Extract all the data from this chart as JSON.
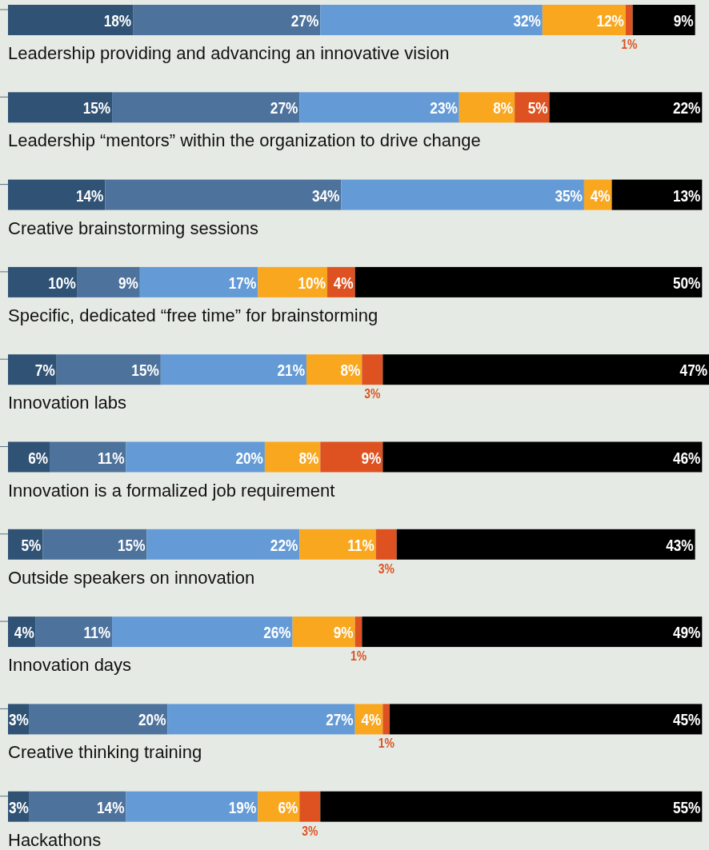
{
  "chart_data": {
    "type": "bar",
    "orientation": "horizontal",
    "stacked": true,
    "xlim": [
      0,
      101
    ],
    "tick_labels": "y",
    "categories": [
      "Leadership providing and advancing an innovative vision",
      "Leadership “mentors” within the organization to drive change",
      "Creative brainstorming sessions",
      "Specific, dedicated “free time” for brainstorming",
      "Innovation labs",
      "Innovation is a formalized job requirement",
      "Outside speakers on innovation",
      "Innovation days",
      "Creative thinking training",
      "Hackathons"
    ],
    "series": [
      {
        "color": "#2f5275",
        "values": [
          18,
          15,
          14,
          10,
          7,
          6,
          5,
          4,
          3,
          3
        ],
        "value_labels": [
          "18%",
          "15%",
          "14%",
          "10%",
          "7%",
          "6%",
          "5%",
          "4%",
          "3%",
          "3%"
        ]
      },
      {
        "color": "#4d729c",
        "values": [
          27,
          27,
          34,
          9,
          15,
          11,
          15,
          11,
          20,
          14
        ],
        "value_labels": [
          "27%",
          "27%",
          "34%",
          "9%",
          "15%",
          "11%",
          "15%",
          "11%",
          "20%",
          "14%"
        ]
      },
      {
        "color": "#649bd6",
        "values": [
          32,
          23,
          35,
          17,
          21,
          20,
          22,
          26,
          27,
          19
        ],
        "value_labels": [
          "32%",
          "23%",
          "35%",
          "17%",
          "21%",
          "20%",
          "22%",
          "26%",
          "27%",
          "19%"
        ]
      },
      {
        "color": "#f9a71f",
        "values": [
          12,
          8,
          4,
          10,
          8,
          8,
          11,
          9,
          4,
          6
        ],
        "value_labels": [
          "12%",
          "8%",
          "4%",
          "10%",
          "8%",
          "8%",
          "11%",
          "9%",
          "4%",
          "6%"
        ]
      },
      {
        "color": "#dd5220",
        "values": [
          1,
          5,
          null,
          4,
          3,
          9,
          3,
          1,
          1,
          3
        ],
        "value_labels": [
          "1%",
          "5%",
          null,
          "4%",
          "3%",
          "9%",
          "3%",
          "1%",
          "1%",
          "3%"
        ]
      },
      {
        "color": "#000000",
        "values": [
          9,
          22,
          13,
          50,
          47,
          46,
          43,
          49,
          45,
          55
        ],
        "value_labels": [
          "9%",
          "22%",
          "13%",
          "50%",
          "47%",
          "46%",
          "43%",
          "49%",
          "45%",
          "55%"
        ]
      }
    ]
  }
}
